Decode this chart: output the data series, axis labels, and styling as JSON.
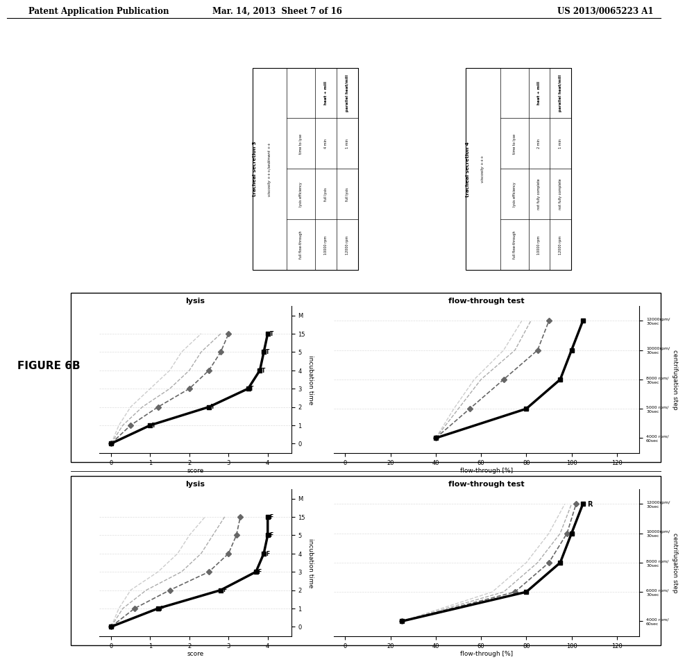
{
  "header_left": "Patent Application Publication",
  "header_center": "Mar. 14, 2013  Sheet 7 of 16",
  "header_right": "US 2013/0065223 A1",
  "figure_label": "FIGURE 6B",
  "top_left_panel": {
    "title": "tracheal secretion 3",
    "subtitle": "viscosity +++/sediment ++",
    "row_labels": [
      "time to lyse",
      "lysis efficiency",
      "full flow-through"
    ],
    "col1_header": "heat + mill",
    "col1_values": [
      "4 min",
      "full lysis",
      "10000 rpm"
    ],
    "col2_header": "parallel heat/mill",
    "col2_values": [
      "1 min",
      "full lysis",
      "12000 rpm"
    ]
  },
  "top_right_panel": {
    "title": "tracheal secretion 4",
    "subtitle": "viscosity +++",
    "row_labels": [
      "time to lyse",
      "lysis efficiency",
      "full flow-through"
    ],
    "col1_header": "heat + mill",
    "col1_values": [
      "2 min",
      "not fully complete",
      "10000 rpm"
    ],
    "col2_header": "parallel heat/mill",
    "col2_values": [
      "1 min",
      "not fully complete",
      "12000 rpm"
    ]
  },
  "lysis_top": {
    "title": "lysis",
    "xlabel": "incubation time",
    "ylabel": "score",
    "ann_char": "T",
    "series1_y": [
      0,
      1.0,
      2.5,
      3.5,
      3.8,
      3.9,
      4.0
    ],
    "series2_y": [
      0,
      0.5,
      1.2,
      2.0,
      2.5,
      2.8,
      3.0
    ],
    "series3_y": [
      0,
      0.3,
      0.8,
      1.5,
      2.0,
      2.3,
      2.8
    ],
    "series4_y": [
      0,
      0.2,
      0.5,
      1.0,
      1.5,
      1.8,
      2.3
    ]
  },
  "lysis_bottom": {
    "title": "lysis",
    "xlabel": "incubation time",
    "ylabel": "score",
    "ann_char": "F",
    "series1_y": [
      0,
      1.2,
      2.8,
      3.7,
      3.9,
      4.0,
      4.0
    ],
    "series2_y": [
      0,
      0.6,
      1.5,
      2.5,
      3.0,
      3.2,
      3.3
    ],
    "series3_y": [
      0,
      0.3,
      0.9,
      1.8,
      2.3,
      2.6,
      2.9
    ],
    "series4_y": [
      0,
      0.2,
      0.5,
      1.2,
      1.7,
      2.0,
      2.4
    ]
  },
  "flow_top": {
    "title": "flow-through test",
    "xlabel": "centrifugation step",
    "ylabel": "flow-through [%]",
    "x_labels": [
      "4000 rpm/\n60sec",
      "5000 rpm/\n30sec",
      "8000 rpm/\n30sec",
      "10000rpm/\n30sec",
      "12000rpm/\n30sec"
    ],
    "y_ticks": [
      0,
      20,
      40,
      60,
      80,
      100,
      120
    ],
    "series1_y": [
      40,
      80,
      95,
      100,
      105
    ],
    "series2_y": [
      40,
      55,
      70,
      85,
      90
    ],
    "series3_y": [
      40,
      50,
      60,
      75,
      82
    ],
    "series4_y": [
      40,
      48,
      57,
      70,
      78
    ],
    "has_R_label": false
  },
  "flow_bottom": {
    "title": "flow-through test",
    "xlabel": "centrifugation step",
    "ylabel": "flow-through [%]",
    "x_labels": [
      "4000 rpm/\n60sec",
      "6000 rpm/\n30sec",
      "8000 rpm/\n30sec",
      "10000rpm/\n30sec",
      "12000rpm/\n30sec"
    ],
    "y_ticks": [
      0,
      20,
      40,
      60,
      80,
      100,
      120
    ],
    "series1_y": [
      25,
      80,
      95,
      100,
      105
    ],
    "series2_y": [
      25,
      75,
      90,
      98,
      102
    ],
    "series3_y": [
      25,
      70,
      85,
      95,
      100
    ],
    "series4_y": [
      25,
      65,
      80,
      90,
      97
    ],
    "has_R_label": true
  },
  "bg_color": "#ffffff"
}
